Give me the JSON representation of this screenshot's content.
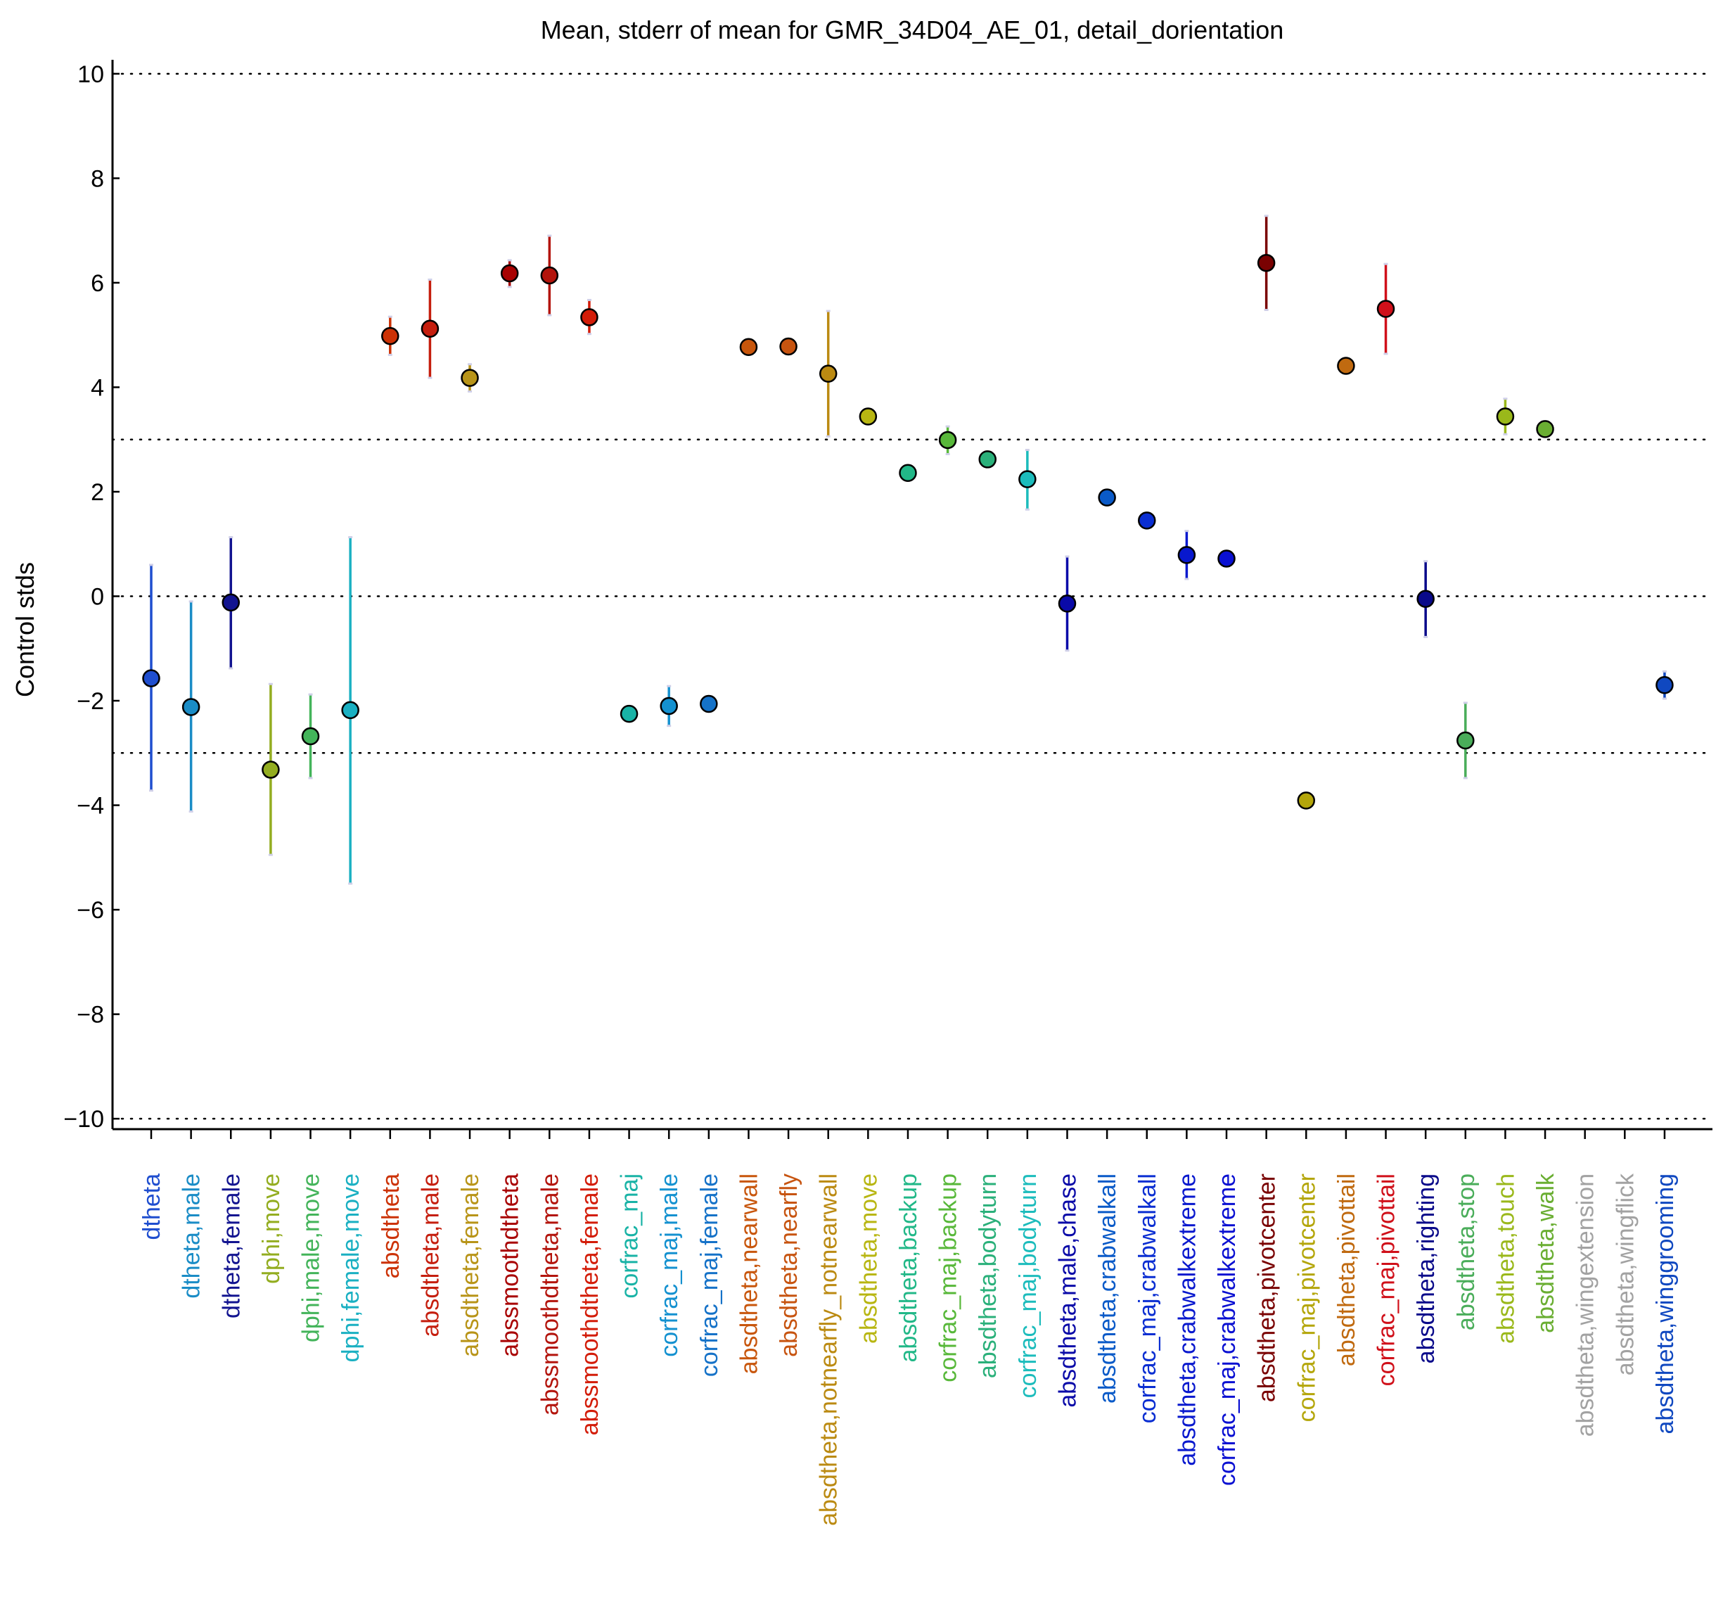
{
  "chart_data": {
    "type": "scatter",
    "title": "Mean, stderr of mean for GMR_34D04_AE_01, detail_dorientation",
    "ylabel": "Control stds",
    "xlabel": "",
    "ylim": [
      -10.2,
      10.2
    ],
    "yticks": [
      10,
      8,
      6,
      4,
      2,
      0,
      -2,
      -4,
      -6,
      -8,
      -10
    ],
    "ytick_labels": [
      "10",
      "8",
      "6",
      "4",
      "2",
      "0",
      "−2",
      "−4",
      "−6",
      "−8",
      "−10"
    ],
    "reference_lines": [
      10,
      3,
      0,
      -3,
      -10
    ],
    "grid": false,
    "points": [
      {
        "label": "dtheta",
        "mean": -1.57,
        "err_low": -3.72,
        "err_high": 0.6,
        "color": "#1f4ecf"
      },
      {
        "label": "dtheta,male",
        "mean": -2.12,
        "err_low": -4.12,
        "err_high": -0.1,
        "color": "#1a8cc6"
      },
      {
        "label": "dtheta,female",
        "mean": -0.12,
        "err_low": -1.38,
        "err_high": 1.13,
        "color": "#121490"
      },
      {
        "label": "dphi,move",
        "mean": -3.32,
        "err_low": -4.95,
        "err_high": -1.68,
        "color": "#93ad20"
      },
      {
        "label": "dphi,male,move",
        "mean": -2.68,
        "err_low": -3.48,
        "err_high": -1.88,
        "color": "#43b45a"
      },
      {
        "label": "dphi,female,move",
        "mean": -2.18,
        "err_low": -5.5,
        "err_high": 1.13,
        "color": "#1ab0c2"
      },
      {
        "label": "absdtheta",
        "mean": 4.98,
        "err_low": 4.62,
        "err_high": 5.35,
        "color": "#cc3206"
      },
      {
        "label": "absdtheta,male",
        "mean": 5.12,
        "err_low": 4.18,
        "err_high": 6.06,
        "color": "#c51e0e"
      },
      {
        "label": "absdtheta,female",
        "mean": 4.18,
        "err_low": 3.92,
        "err_high": 4.44,
        "color": "#b89418"
      },
      {
        "label": "abssmoothdtheta",
        "mean": 6.18,
        "err_low": 5.92,
        "err_high": 6.43,
        "color": "#a80202"
      },
      {
        "label": "abssmoothdtheta,male",
        "mean": 6.14,
        "err_low": 5.38,
        "err_high": 6.9,
        "color": "#b3140c"
      },
      {
        "label": "abssmoothdtheta,female",
        "mean": 5.34,
        "err_low": 5.02,
        "err_high": 5.67,
        "color": "#d31c08"
      },
      {
        "label": "corfrac_maj",
        "mean": -2.25,
        "err_low": -2.3,
        "err_high": -2.2,
        "color": "#19b3a6"
      },
      {
        "label": "corfrac_maj,male",
        "mean": -2.1,
        "err_low": -2.48,
        "err_high": -1.72,
        "color": "#1491d0"
      },
      {
        "label": "corfrac_maj,female",
        "mean": -2.06,
        "err_low": -2.1,
        "err_high": -2.02,
        "color": "#1572c8"
      },
      {
        "label": "absdtheta,nearwall",
        "mean": 4.77,
        "err_low": 4.74,
        "err_high": 4.8,
        "color": "#c8560c"
      },
      {
        "label": "absdtheta,nearfly",
        "mean": 4.78,
        "err_low": 4.75,
        "err_high": 4.81,
        "color": "#c75410"
      },
      {
        "label": "absdtheta,notnearfly_notnearwall",
        "mean": 4.26,
        "err_low": 3.06,
        "err_high": 5.46,
        "color": "#bb8a12"
      },
      {
        "label": "absdtheta,move",
        "mean": 3.44,
        "err_low": 3.4,
        "err_high": 3.48,
        "color": "#b8b612"
      },
      {
        "label": "absdtheta,backup",
        "mean": 2.36,
        "err_low": 2.32,
        "err_high": 2.4,
        "color": "#22b888"
      },
      {
        "label": "corfrac_maj,backup",
        "mean": 2.99,
        "err_low": 2.72,
        "err_high": 3.25,
        "color": "#58b83a"
      },
      {
        "label": "absdtheta,bodyturn",
        "mean": 2.62,
        "err_low": 2.58,
        "err_high": 2.66,
        "color": "#2ab07a"
      },
      {
        "label": "corfrac_maj,bodyturn",
        "mean": 2.24,
        "err_low": 1.66,
        "err_high": 2.8,
        "color": "#1cbcbc"
      },
      {
        "label": "absdtheta,male,chase",
        "mean": -0.14,
        "err_low": -1.04,
        "err_high": 0.76,
        "color": "#0a0aa8"
      },
      {
        "label": "absdtheta,crabwalkall",
        "mean": 1.89,
        "err_low": 1.85,
        "err_high": 1.93,
        "color": "#0a5ac8"
      },
      {
        "label": "corfrac_maj,crabwalkall",
        "mean": 1.45,
        "err_low": 1.41,
        "err_high": 1.49,
        "color": "#0a2ed2"
      },
      {
        "label": "absdtheta,crabwalkextreme",
        "mean": 0.79,
        "err_low": 0.33,
        "err_high": 1.25,
        "color": "#0818ce"
      },
      {
        "label": "corfrac_maj,crabwalkextreme",
        "mean": 0.72,
        "err_low": 0.68,
        "err_high": 0.76,
        "color": "#0a10d2"
      },
      {
        "label": "absdtheta,pivotcenter",
        "mean": 6.38,
        "err_low": 5.48,
        "err_high": 7.28,
        "color": "#7a0202"
      },
      {
        "label": "corfrac_maj,pivotcenter",
        "mean": -3.91,
        "err_low": -3.95,
        "err_high": -3.87,
        "color": "#b4a60a"
      },
      {
        "label": "absdtheta,pivottail",
        "mean": 4.41,
        "err_low": 4.37,
        "err_high": 4.45,
        "color": "#c06a10"
      },
      {
        "label": "corfrac_maj,pivottail",
        "mean": 5.5,
        "err_low": 4.64,
        "err_high": 6.36,
        "color": "#d0101a"
      },
      {
        "label": "absdtheta,righting",
        "mean": -0.05,
        "err_low": -0.78,
        "err_high": 0.67,
        "color": "#0a0a8a"
      },
      {
        "label": "absdtheta,stop",
        "mean": -2.76,
        "err_low": -3.48,
        "err_high": -2.04,
        "color": "#4aad5a"
      },
      {
        "label": "absdtheta,touch",
        "mean": 3.44,
        "err_low": 3.1,
        "err_high": 3.78,
        "color": "#9ab81a"
      },
      {
        "label": "absdtheta,walk",
        "mean": 3.2,
        "err_low": 3.16,
        "err_high": 3.24,
        "color": "#6aae32"
      },
      {
        "label": "absdtheta,wingextension",
        "mean": null,
        "err_low": null,
        "err_high": null,
        "color": "#a2a2a2"
      },
      {
        "label": "absdtheta,wingflick",
        "mean": null,
        "err_low": null,
        "err_high": null,
        "color": "#a2a2a2"
      },
      {
        "label": "absdtheta,winggrooming",
        "mean": -1.7,
        "err_low": -1.96,
        "err_high": -1.44,
        "color": "#1048c0"
      }
    ]
  }
}
